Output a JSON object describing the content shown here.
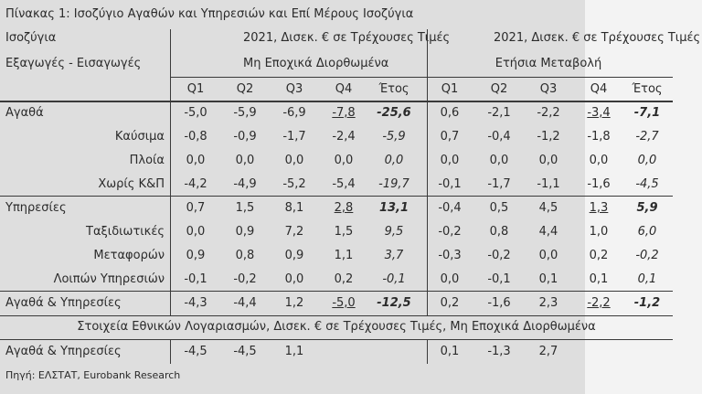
{
  "title": "Πίνακας 1: Ισοζύγιο Αγαθών και Υπηρεσιών και Επί Μέρους Ισοζύγια",
  "table": {
    "header": {
      "label": [
        "Ισοζύγια",
        "Εξαγωγές - Εισαγωγές"
      ],
      "annual": [
        "2021, Δισεκ. € σε Τρέχουσες Τιμές",
        "Μη Εποχικά Διορθωμένα"
      ],
      "change": [
        "2021, Δισεκ. € σε Τρέχουσες Τιμές",
        "Ετήσια Μεταβολή"
      ],
      "annual_columns": [
        "Q1",
        "Q2",
        "Q3",
        "Q4",
        "Έτος"
      ],
      "change_columns": [
        "Q1",
        "Q2",
        "Q3",
        "Q4",
        "Έτος"
      ]
    },
    "rows": [
      {
        "label": "Αγαθά",
        "annual": [
          "-5,0",
          "-5,9",
          "-6,9",
          "-7,8",
          "-25,6"
        ],
        "change": [
          "0,6",
          "-2,1",
          "-2,2",
          "-3,4",
          "-7,1"
        ]
      },
      {
        "label": "Καύσιμα",
        "annual": [
          "-0,8",
          "-0,9",
          "-1,7",
          "-2,4",
          "-5,9"
        ],
        "change": [
          "0,7",
          "-0,4",
          "-1,2",
          "-1,8",
          "-2,7"
        ]
      },
      {
        "label": "Πλοία",
        "annual": [
          "0,0",
          "0,0",
          "0,0",
          "0,0",
          "0,0"
        ],
        "change": [
          "0,0",
          "0,0",
          "0,0",
          "0,0",
          "0,0"
        ]
      },
      {
        "label": "Χωρίς Κ&Π",
        "annual": [
          "-4,2",
          "-4,9",
          "-5,2",
          "-5,4",
          "-19,7"
        ],
        "change": [
          "-0,1",
          "-1,7",
          "-1,1",
          "-1,6",
          "-4,5"
        ]
      },
      {
        "label": "Υπηρεσίες",
        "annual": [
          "0,7",
          "1,5",
          "8,1",
          "2,8",
          "13,1"
        ],
        "change": [
          "-0,4",
          "0,5",
          "4,5",
          "1,3",
          "5,9"
        ]
      },
      {
        "label": "Ταξιδιωτικές",
        "annual": [
          "0,0",
          "0,9",
          "7,2",
          "1,5",
          "9,5"
        ],
        "change": [
          "-0,2",
          "0,8",
          "4,4",
          "1,0",
          "6,0"
        ]
      },
      {
        "label": "Μεταφορών",
        "annual": [
          "0,9",
          "0,8",
          "0,9",
          "1,1",
          "3,7"
        ],
        "change": [
          "-0,3",
          "-0,2",
          "0,0",
          "0,2",
          "-0,2"
        ]
      },
      {
        "label": "Λοιπών Υπηρεσιών",
        "annual": [
          "-0,1",
          "-0,2",
          "0,0",
          "0,2",
          "-0,1"
        ],
        "change": [
          "0,0",
          "-0,1",
          "0,1",
          "0,1",
          "0,1"
        ]
      },
      {
        "label": "Αγαθά & Υπηρεσίες",
        "annual": [
          "-4,3",
          "-4,4",
          "1,2",
          "-5,0",
          "-12,5"
        ],
        "change": [
          "0,2",
          "-1,6",
          "2,3",
          "-2,2",
          "-1,2"
        ]
      }
    ],
    "note": "Στοιχεία Εθνικών Λογαριασμών, Δισεκ. € σε Τρέχουσες Τιμές, Μη Εποχικά Διορθωμένα",
    "last_row": {
      "label": "Αγαθά & Υπηρεσίες",
      "annual": [
        "-4,5",
        "-4,5",
        "1,1"
      ],
      "change": [
        "0,1",
        "-1,3",
        "2,7"
      ]
    }
  },
  "source": "Πηγή: ΕΛΣΤΑΤ, Eurobank Research"
}
